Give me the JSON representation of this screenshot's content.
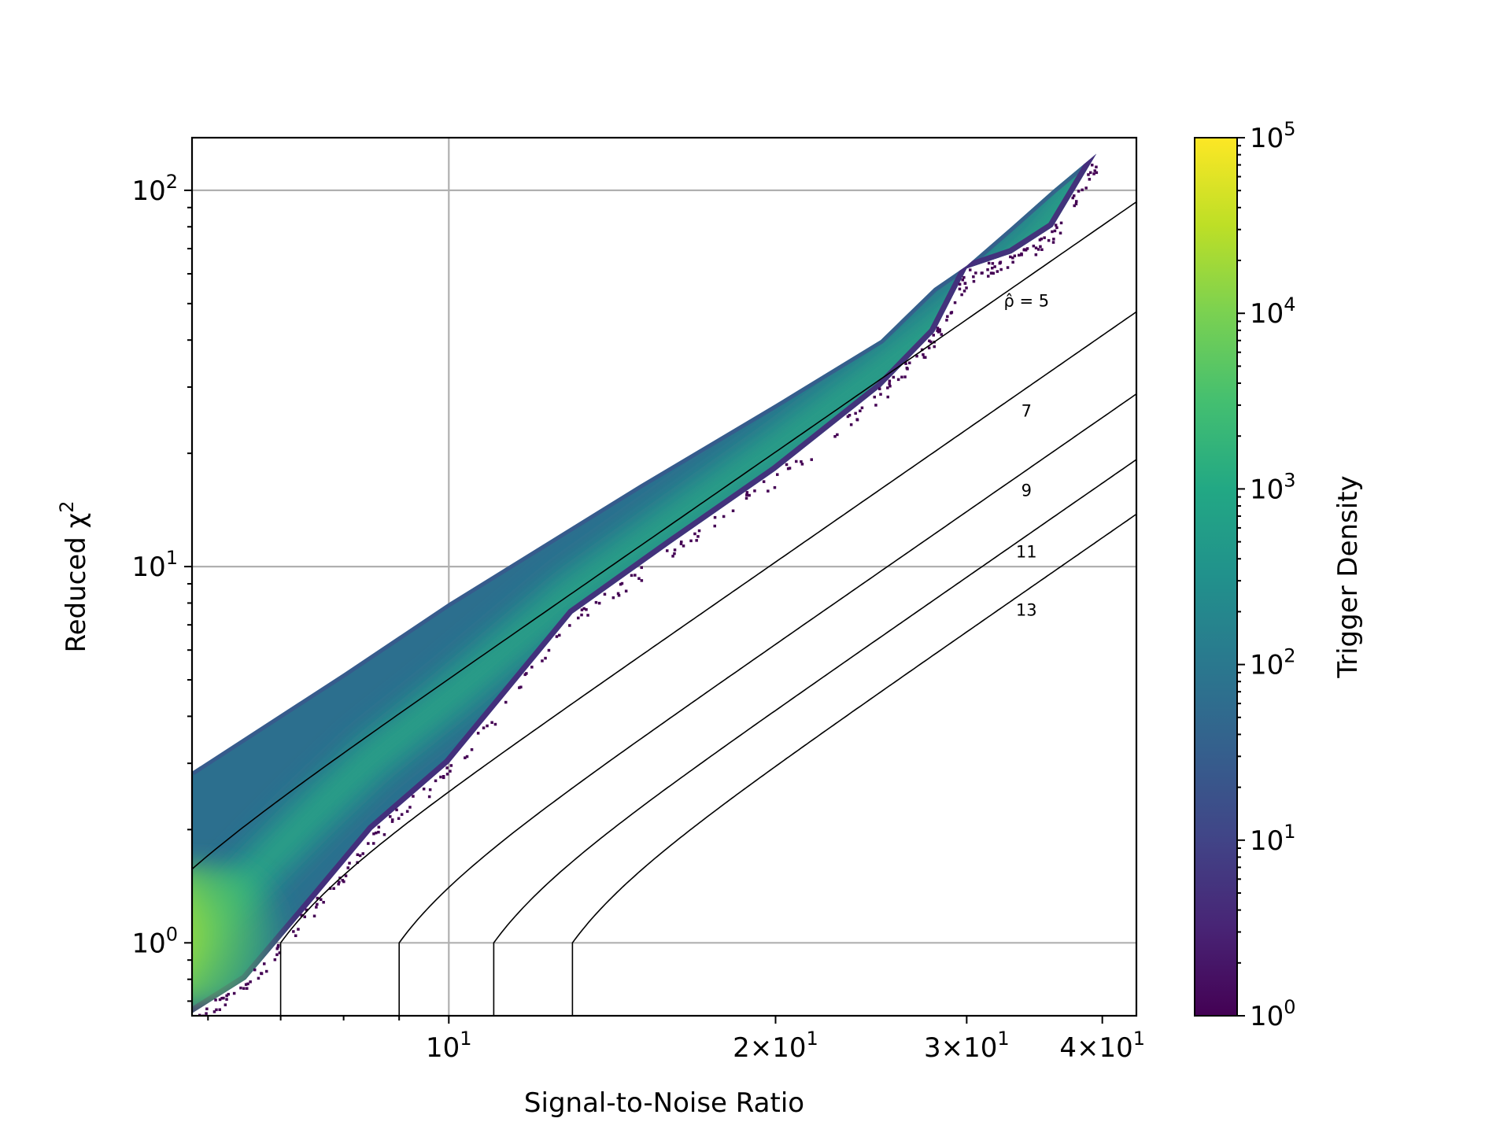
{
  "chart_data": {
    "type": "heatmap",
    "subtype": "hexbin",
    "title": "",
    "xlabel": "Signal-to-Noise Ratio",
    "ylabel": "Reduced χ²",
    "xscale": "log",
    "yscale": "log",
    "xlim": [
      5.8,
      43
    ],
    "ylim": [
      0.64,
      138
    ],
    "x_major_ticks": [
      {
        "value": 10,
        "label": "10^1"
      },
      {
        "value": 20,
        "label": "2×10^1"
      },
      {
        "value": 30,
        "label": "3×10^1"
      },
      {
        "value": 40,
        "label": "4×10^1"
      }
    ],
    "y_major_ticks": [
      {
        "value": 1,
        "label": "10^0"
      },
      {
        "value": 10,
        "label": "10^1"
      },
      {
        "value": 100,
        "label": "10^2"
      }
    ],
    "grid": true,
    "colorbar": {
      "label": "Trigger Density",
      "scale": "log",
      "range": [
        1,
        100000
      ],
      "colormap": "viridis",
      "ticks": [
        {
          "value": 1,
          "label": "10^0"
        },
        {
          "value": 10,
          "label": "10^1"
        },
        {
          "value": 100,
          "label": "10^2"
        },
        {
          "value": 1000,
          "label": "10^3"
        },
        {
          "value": 10000,
          "label": "10^4"
        },
        {
          "value": 100000,
          "label": "10^5"
        }
      ]
    },
    "density_region": {
      "upper_edge": [
        [
          5.8,
          2.85
        ],
        [
          8,
          5.2
        ],
        [
          10,
          8.0
        ],
        [
          15,
          16.5
        ],
        [
          20,
          27.0
        ],
        [
          25,
          40.0
        ],
        [
          28,
          55.0
        ],
        [
          30,
          63.0
        ],
        [
          33,
          80.0
        ],
        [
          36,
          100.0
        ],
        [
          39.5,
          125.0
        ]
      ],
      "lower_edge": [
        [
          5.8,
          0.65
        ],
        [
          6.5,
          0.8
        ],
        [
          7.5,
          1.3
        ],
        [
          8.5,
          2.0
        ],
        [
          10,
          3.0
        ],
        [
          13,
          7.5
        ],
        [
          16,
          11.5
        ],
        [
          20,
          18.0
        ],
        [
          25,
          30.0
        ],
        [
          28,
          42.0
        ],
        [
          30,
          62.0
        ],
        [
          33,
          68.0
        ],
        [
          36,
          80.0
        ],
        [
          39.5,
          125.0
        ]
      ],
      "ridge": [
        [
          5.8,
          1.05
        ],
        [
          6.5,
          1.45
        ],
        [
          7.5,
          2.2
        ],
        [
          8.5,
          3.1
        ],
        [
          10,
          4.5
        ],
        [
          13,
          8.5
        ],
        [
          16,
          13.0
        ],
        [
          20,
          20.5
        ],
        [
          25,
          33.0
        ],
        [
          30,
          50.0
        ],
        [
          35,
          75.0
        ],
        [
          39,
          110.0
        ]
      ],
      "peak_density_point": [
        5.9,
        1.05
      ],
      "peak_density": 100000
    },
    "contours": [
      {
        "label": "ρ̂ = 5",
        "rho": 5,
        "label_at": [
          32.5,
          51
        ]
      },
      {
        "label": "7",
        "rho": 7,
        "label_at": [
          32.5,
          26
        ]
      },
      {
        "label": "9",
        "rho": 9,
        "label_at": [
          32.5,
          16
        ]
      },
      {
        "label": "11",
        "rho": 11,
        "label_at": [
          32.5,
          11
        ]
      },
      {
        "label": "13",
        "rho": 13,
        "label_at": [
          32.5,
          7.7
        ]
      }
    ]
  }
}
